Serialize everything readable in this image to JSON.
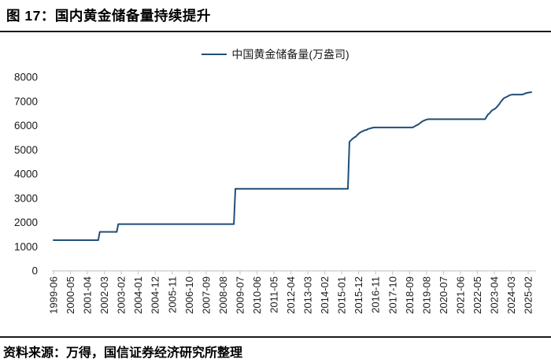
{
  "header": {
    "title": "图 17：国内黄金储备量持续提升"
  },
  "footer": {
    "source": "资料来源：万得，国信证券经济研究所整理"
  },
  "chart_data": {
    "type": "line",
    "legend": "中国黄金储备量(万盎司)",
    "legend_position": "top-center",
    "grid": false,
    "ylabel": "",
    "xlabel": "",
    "ylim": [
      0,
      8000
    ],
    "y_ticks": [
      0,
      1000,
      2000,
      3000,
      4000,
      5000,
      6000,
      7000,
      8000
    ],
    "x_range": [
      "1999-06",
      "2025-04"
    ],
    "x_frequency": "monthly",
    "x_tick_labels": [
      "1999-06",
      "2000-05",
      "2001-04",
      "2002-03",
      "2003-02",
      "2004-01",
      "2004-12",
      "2005-11",
      "2006-10",
      "2007-09",
      "2008-08",
      "2009-07",
      "2010-06",
      "2011-05",
      "2012-04",
      "2013-03",
      "2014-02",
      "2015-01",
      "2015-12",
      "2016-11",
      "2017-10",
      "2018-09",
      "2019-08",
      "2020-07",
      "2021-06",
      "2022-05",
      "2023-04",
      "2024-03",
      "2025-02"
    ],
    "style": {
      "line_color": "#1F4E79",
      "axis_color": "#C9C9C9",
      "text_color": "#1A1A1A"
    },
    "series": [
      {
        "name": "中国黄金储备量(万盎司)",
        "sampling": "monthly; value holds from each listed month until the next listed change",
        "points": [
          [
            "1999-06",
            1267
          ],
          [
            "2001-12",
            1608
          ],
          [
            "2002-12",
            1929
          ],
          [
            "2009-04",
            3389
          ],
          [
            "2015-06",
            5332
          ],
          [
            "2015-07",
            5393
          ],
          [
            "2015-08",
            5452
          ],
          [
            "2015-09",
            5509
          ],
          [
            "2015-10",
            5538
          ],
          [
            "2015-11",
            5605
          ],
          [
            "2015-12",
            5666
          ],
          [
            "2016-01",
            5718
          ],
          [
            "2016-02",
            5750
          ],
          [
            "2016-03",
            5779
          ],
          [
            "2016-04",
            5814
          ],
          [
            "2016-05",
            5815
          ],
          [
            "2016-06",
            5862
          ],
          [
            "2016-07",
            5872
          ],
          [
            "2016-08",
            5895
          ],
          [
            "2016-09",
            5911
          ],
          [
            "2016-10",
            5924
          ],
          [
            "2018-12",
            5956
          ],
          [
            "2019-01",
            5994
          ],
          [
            "2019-02",
            6026
          ],
          [
            "2019-03",
            6062
          ],
          [
            "2019-04",
            6110
          ],
          [
            "2019-05",
            6161
          ],
          [
            "2019-06",
            6194
          ],
          [
            "2019-07",
            6226
          ],
          [
            "2019-08",
            6245
          ],
          [
            "2019-09",
            6264
          ],
          [
            "2022-11",
            6367
          ],
          [
            "2022-12",
            6464
          ],
          [
            "2023-01",
            6512
          ],
          [
            "2023-02",
            6592
          ],
          [
            "2023-03",
            6650
          ],
          [
            "2023-04",
            6676
          ],
          [
            "2023-05",
            6727
          ],
          [
            "2023-06",
            6795
          ],
          [
            "2023-07",
            6869
          ],
          [
            "2023-08",
            6962
          ],
          [
            "2023-09",
            7046
          ],
          [
            "2023-10",
            7120
          ],
          [
            "2023-11",
            7158
          ],
          [
            "2023-12",
            7187
          ],
          [
            "2024-01",
            7219
          ],
          [
            "2024-02",
            7258
          ],
          [
            "2024-03",
            7274
          ],
          [
            "2024-04",
            7280
          ],
          [
            "2024-11",
            7296
          ],
          [
            "2024-12",
            7329
          ],
          [
            "2025-01",
            7345
          ],
          [
            "2025-02",
            7361
          ],
          [
            "2025-03",
            7370
          ],
          [
            "2025-04",
            7377
          ]
        ]
      }
    ]
  }
}
